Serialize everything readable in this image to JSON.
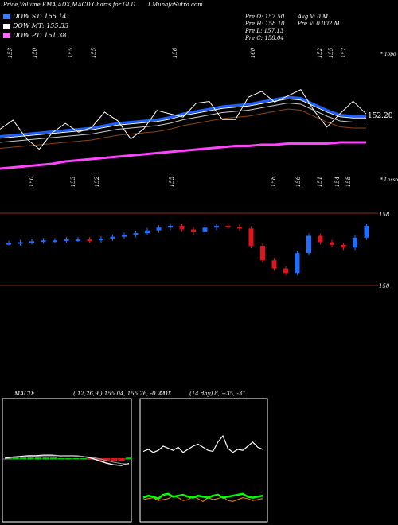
{
  "header": {
    "title": "Price,Volume,EMA,ADX,MACD Charts for GLD",
    "brand": "I MunafaSutra.com"
  },
  "legend": [
    {
      "label": "DOW ST: 155.14",
      "color": "#3a7bff"
    },
    {
      "label": "DOW MT: 155.33",
      "color": "#ffffff"
    },
    {
      "label": "DOW PT: 151.38",
      "color": "#ff66ff"
    }
  ],
  "stats": {
    "col1": [
      "Pre O: 157.50",
      "Pre H: 158.10",
      "Pre L: 157.13",
      "Pre C: 158.04"
    ],
    "col2": [
      "Avg V: 0 M",
      "Pre V: 0.002 M"
    ]
  },
  "labels": {
    "topo": "* Topo",
    "losso": "* Losso",
    "last_price": "152.20",
    "price_158": "158",
    "price_150": "150"
  },
  "top_price_labels": [
    "153",
    "150",
    "155",
    "155",
    "156",
    "160",
    "152",
    "155",
    "157"
  ],
  "bottom_price_labels": [
    "150",
    "153",
    "152",
    "155",
    "158",
    "156",
    "151",
    "154",
    "158"
  ],
  "macd": {
    "label": "MACD:",
    "values": "( 12,26,9 ) 155.04,  155.26,  -0.22"
  },
  "adx": {
    "label": "ADX",
    "values": "(14 day) 8, +35, -31"
  },
  "colors": {
    "up": "#1e6fff",
    "down": "#e0141e",
    "ema_fast": "#1f5fff",
    "ema_pt": "#ff44ff",
    "ema_mid": "#8b4513",
    "grid": "#8b2a1a",
    "adx_plus": "#00ff00",
    "adx_minus": "#ff8c00",
    "macd_bar": "#00cc00"
  },
  "chart_data": [
    {
      "type": "line",
      "title": "GLD price with EMA",
      "series": [
        {
          "name": "DOW ST",
          "values": [
            151.9,
            152.0,
            152.1,
            152.2,
            152.3,
            152.4,
            152.5,
            152.6,
            152.8,
            153.0,
            153.1,
            153.2,
            153.3,
            153.5,
            153.8,
            154.0,
            154.2,
            154.4,
            154.5,
            154.6,
            154.8,
            155.0,
            155.2,
            155.1,
            154.6,
            154.1,
            153.7,
            153.6,
            153.6
          ]
        },
        {
          "name": "DOW PT",
          "values": [
            149.2,
            149.3,
            149.4,
            149.5,
            149.6,
            149.8,
            149.9,
            150.0,
            150.1,
            150.2,
            150.3,
            150.4,
            150.5,
            150.6,
            150.7,
            150.8,
            150.9,
            151.0,
            151.1,
            151.1,
            151.2,
            151.2,
            151.3,
            151.3,
            151.3,
            151.3,
            151.4,
            151.4,
            151.4
          ]
        }
      ]
    },
    {
      "type": "bar",
      "title": "candles",
      "values": [
        154.7,
        154.8,
        154.9,
        155.0,
        155.0,
        155.1,
        155.1,
        155.0,
        155.2,
        155.4,
        155.6,
        155.8,
        156.1,
        156.4,
        156.6,
        156.2,
        155.9,
        156.4,
        156.6,
        156.5,
        156.3,
        154.4,
        152.8,
        151.9,
        151.4,
        153.6,
        155.5,
        154.8,
        154.5,
        154.2,
        155.3,
        156.6
      ]
    },
    {
      "type": "line",
      "title": "MACD",
      "series": [
        {
          "name": "MACD",
          "values": [
            0.1,
            0.3,
            0.4,
            0.5,
            0.5,
            0.6,
            0.6,
            0.5,
            0.5,
            0.5,
            0.4,
            0.2,
            -0.2,
            -0.6,
            -0.9,
            -1.0,
            -0.7
          ]
        },
        {
          "name": "Signal",
          "values": [
            0.0,
            0.2,
            0.3,
            0.4,
            0.4,
            0.5,
            0.5,
            0.5,
            0.5,
            0.5,
            0.4,
            0.3,
            0.1,
            -0.2,
            -0.5,
            -0.7,
            -0.8
          ]
        }
      ]
    },
    {
      "type": "line",
      "title": "ADX",
      "series": [
        {
          "name": "ADX",
          "values": [
            25,
            27,
            24,
            26,
            30,
            28,
            26,
            29,
            24,
            27,
            30,
            32,
            29,
            26,
            25,
            34,
            40,
            28,
            24,
            27,
            26,
            30,
            34,
            29,
            27
          ]
        },
        {
          "name": "+DI",
          "values": [
            12,
            14,
            13,
            11,
            15,
            16,
            13,
            14,
            15,
            13,
            12,
            14,
            13,
            12,
            14,
            15,
            12,
            13,
            14,
            15,
            16,
            13,
            12,
            13,
            14
          ]
        },
        {
          "name": "-DI",
          "values": [
            10,
            11,
            12,
            9,
            10,
            11,
            14,
            12,
            9,
            10,
            13,
            11,
            8,
            12,
            10,
            11,
            13,
            9,
            8,
            10,
            12,
            11,
            9,
            10,
            11
          ]
        }
      ]
    }
  ]
}
